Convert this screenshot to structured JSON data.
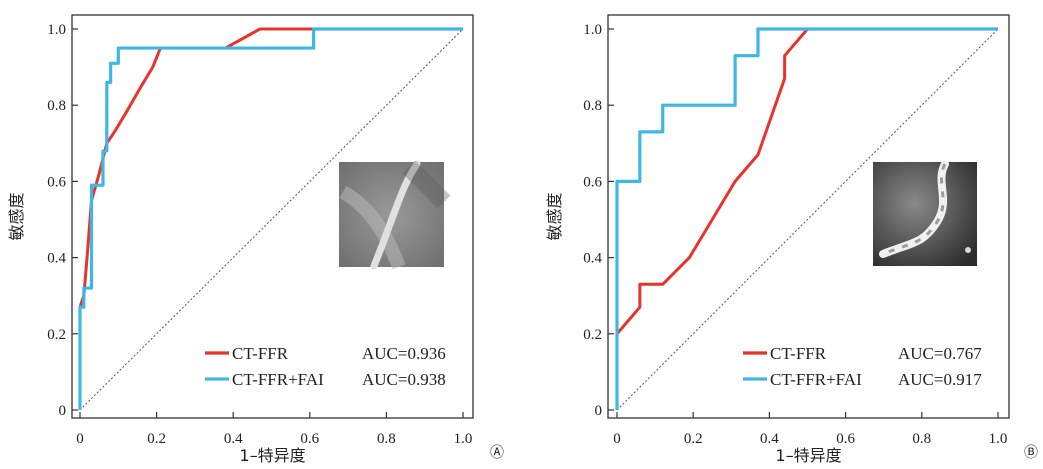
{
  "chart_data": [
    {
      "panel_label": "A",
      "type": "line",
      "xlabel": "1–特异度",
      "ylabel": "敏感度",
      "xlim": [
        0,
        1
      ],
      "ylim": [
        0,
        1
      ],
      "x_ticks": [
        "0",
        "0.2",
        "0.4",
        "0.6",
        "0.8",
        "1.0"
      ],
      "y_ticks": [
        "0",
        "0.2",
        "0.4",
        "0.6",
        "0.8",
        "1.0"
      ],
      "grid": false,
      "legend_position": "bottom-right",
      "reference_line": "diagonal",
      "series": [
        {
          "name": "CT-FFR",
          "color": "#e8332a",
          "auc_label": "AUC=0.936",
          "points": [
            [
              0,
              0.27
            ],
            [
              0.01,
              0.3
            ],
            [
              0.02,
              0.42
            ],
            [
              0.03,
              0.55
            ],
            [
              0.05,
              0.62
            ],
            [
              0.06,
              0.66
            ],
            [
              0.07,
              0.7
            ],
            [
              0.09,
              0.73
            ],
            [
              0.12,
              0.78
            ],
            [
              0.16,
              0.85
            ],
            [
              0.19,
              0.9
            ],
            [
              0.21,
              0.95
            ],
            [
              0.38,
              0.95
            ],
            [
              0.47,
              1.0
            ],
            [
              1.0,
              1.0
            ]
          ]
        },
        {
          "name": "CT-FFR+FAI",
          "color": "#3db8e6",
          "auc_label": "AUC=0.938",
          "points": [
            [
              0,
              0
            ],
            [
              0,
              0.27
            ],
            [
              0.01,
              0.27
            ],
            [
              0.01,
              0.32
            ],
            [
              0.03,
              0.32
            ],
            [
              0.03,
              0.59
            ],
            [
              0.06,
              0.59
            ],
            [
              0.06,
              0.68
            ],
            [
              0.07,
              0.68
            ],
            [
              0.07,
              0.86
            ],
            [
              0.08,
              0.86
            ],
            [
              0.08,
              0.91
            ],
            [
              0.1,
              0.91
            ],
            [
              0.1,
              0.95
            ],
            [
              0.61,
              0.95
            ],
            [
              0.61,
              1.0
            ],
            [
              1.0,
              1.0
            ]
          ]
        }
      ],
      "inset": "ct-vessel-image-icon",
      "corner_mark": "Ⓐ"
    },
    {
      "panel_label": "B",
      "type": "line",
      "xlabel": "1–特异度",
      "ylabel": "敏感度",
      "xlim": [
        0,
        1
      ],
      "ylim": [
        0,
        1
      ],
      "x_ticks": [
        "0",
        "0.2",
        "0.4",
        "0.6",
        "0.8",
        "1.0"
      ],
      "y_ticks": [
        "0",
        "0.2",
        "0.4",
        "0.6",
        "0.8",
        "1.0"
      ],
      "grid": false,
      "legend_position": "bottom-right",
      "reference_line": "diagonal",
      "series": [
        {
          "name": "CT-FFR",
          "color": "#e8332a",
          "auc_label": "AUC=0.767",
          "points": [
            [
              0,
              0.2
            ],
            [
              0.06,
              0.27
            ],
            [
              0.06,
              0.33
            ],
            [
              0.12,
              0.33
            ],
            [
              0.19,
              0.4
            ],
            [
              0.25,
              0.5
            ],
            [
              0.31,
              0.6
            ],
            [
              0.37,
              0.67
            ],
            [
              0.44,
              0.87
            ],
            [
              0.44,
              0.93
            ],
            [
              0.5,
              1.0
            ],
            [
              1.0,
              1.0
            ]
          ]
        },
        {
          "name": "CT-FFR+FAI",
          "color": "#3db8e6",
          "auc_label": "AUC=0.917",
          "points": [
            [
              0,
              0
            ],
            [
              0,
              0.6
            ],
            [
              0.06,
              0.6
            ],
            [
              0.06,
              0.73
            ],
            [
              0.12,
              0.73
            ],
            [
              0.12,
              0.8
            ],
            [
              0.31,
              0.8
            ],
            [
              0.31,
              0.93
            ],
            [
              0.37,
              0.93
            ],
            [
              0.37,
              1.0
            ],
            [
              1.0,
              1.0
            ]
          ]
        }
      ],
      "inset": "ct-vessel-image-icon",
      "corner_mark": "Ⓑ"
    }
  ]
}
